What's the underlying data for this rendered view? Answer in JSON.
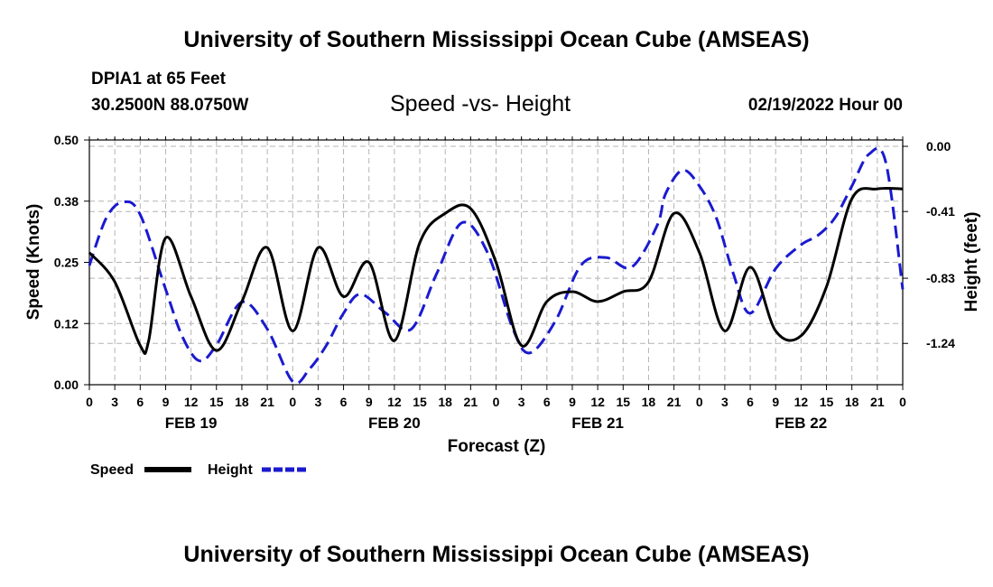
{
  "page": {
    "title_top": "University of Southern Mississippi Ocean Cube (AMSEAS)",
    "title_bottom": "University of Southern Mississippi Ocean Cube (AMSEAS)",
    "station": "DPIA1 at 65 Feet",
    "location": "30.2500N  88.0750W",
    "subtitle": "Speed -vs- Height",
    "datetime": "02/19/2022 Hour 00"
  },
  "chart_data": {
    "type": "line",
    "title": "Speed -vs- Height",
    "xlabel": "Forecast (Z)",
    "ylabel": "Speed (Knots)",
    "y2label": "Height (feet)",
    "xlim": [
      0,
      96
    ],
    "ylim": [
      0,
      0.5
    ],
    "y2lim": [
      -1.5,
      0.04
    ],
    "x_tick_labels": [
      "0",
      "3",
      "6",
      "9",
      "12",
      "15",
      "18",
      "21",
      "0",
      "3",
      "6",
      "9",
      "12",
      "15",
      "18",
      "21",
      "0",
      "3",
      "6",
      "9",
      "12",
      "15",
      "18",
      "21",
      "0",
      "3",
      "6",
      "9",
      "12",
      "15",
      "18",
      "21",
      "0"
    ],
    "date_labels": [
      {
        "x": 12,
        "label": "FEB 19"
      },
      {
        "x": 36,
        "label": "FEB 20"
      },
      {
        "x": 60,
        "label": "FEB 21"
      },
      {
        "x": 84,
        "label": "FEB 22"
      }
    ],
    "y_ticks": [
      {
        "value": 0.0,
        "label": "0.00"
      },
      {
        "value": 0.125,
        "label": "0.12"
      },
      {
        "value": 0.25,
        "label": "0.25"
      },
      {
        "value": 0.375,
        "label": "0.38"
      },
      {
        "value": 0.5,
        "label": "0.50"
      }
    ],
    "y2_ticks": [
      {
        "value": 0.0,
        "label": "0.00"
      },
      {
        "value": -0.41,
        "label": "-0.41"
      },
      {
        "value": -0.83,
        "label": "-0.83"
      },
      {
        "value": -1.24,
        "label": "-1.24"
      }
    ],
    "legend": [
      {
        "name": "Speed",
        "color": "#000000",
        "style": "solid"
      },
      {
        "name": "Height",
        "color": "#1a1ad0",
        "style": "dashed"
      }
    ],
    "series": [
      {
        "name": "Speed",
        "axis": "left",
        "color": "#000000",
        "x": [
          0,
          3,
          6,
          7,
          9,
          12,
          15,
          18,
          21,
          24,
          27,
          30,
          33,
          36,
          39,
          42,
          45,
          48,
          51,
          54,
          57,
          60,
          63,
          66,
          69,
          72,
          75,
          78,
          81,
          84,
          87,
          90,
          93,
          96
        ],
        "values": [
          0.27,
          0.21,
          0.08,
          0.09,
          0.3,
          0.18,
          0.07,
          0.17,
          0.28,
          0.11,
          0.28,
          0.18,
          0.25,
          0.09,
          0.29,
          0.35,
          0.36,
          0.25,
          0.08,
          0.17,
          0.19,
          0.17,
          0.19,
          0.21,
          0.35,
          0.27,
          0.11,
          0.24,
          0.11,
          0.1,
          0.2,
          0.38,
          0.4,
          0.4
        ]
      },
      {
        "name": "Height",
        "axis": "right",
        "color": "#1a1ad0",
        "x": [
          0,
          2,
          4,
          6,
          9,
          11,
          13,
          15,
          18,
          21,
          24,
          26,
          28,
          30,
          32,
          35,
          38,
          41,
          44,
          47,
          50,
          52,
          55,
          58,
          61,
          64,
          67,
          68,
          70,
          72,
          74,
          76,
          78,
          81,
          84,
          86,
          88,
          90,
          92,
          94,
          96
        ],
        "values": [
          -0.75,
          -0.45,
          -0.35,
          -0.43,
          -0.9,
          -1.2,
          -1.35,
          -1.25,
          -0.98,
          -1.15,
          -1.48,
          -1.4,
          -1.25,
          -1.05,
          -0.93,
          -1.05,
          -1.15,
          -0.8,
          -0.48,
          -0.67,
          -1.15,
          -1.3,
          -1.1,
          -0.75,
          -0.7,
          -0.76,
          -0.5,
          -0.3,
          -0.15,
          -0.25,
          -0.45,
          -0.8,
          -1.05,
          -0.77,
          -0.62,
          -0.56,
          -0.45,
          -0.25,
          -0.05,
          -0.1,
          -0.9
        ]
      }
    ]
  }
}
